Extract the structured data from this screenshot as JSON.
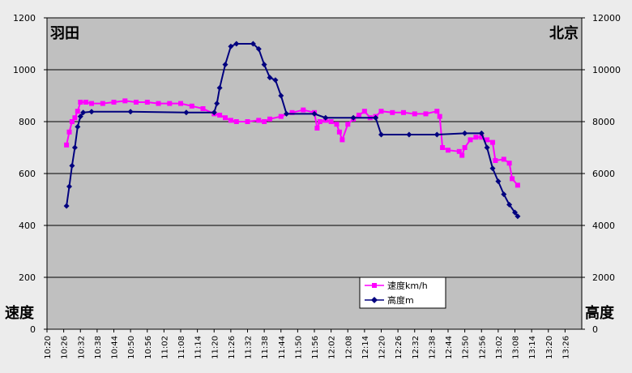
{
  "chart_data": {
    "type": "line",
    "corner_labels": {
      "top_left": "羽田",
      "top_right": "北京",
      "bottom_left": "速度",
      "bottom_right": "高度"
    },
    "left_axis": {
      "ylim": [
        0,
        1200
      ],
      "ticks": [
        "0",
        "200",
        "400",
        "600",
        "800",
        "1000",
        "1200"
      ]
    },
    "right_axis": {
      "ylim": [
        0,
        12000
      ],
      "ticks": [
        "0",
        "2000",
        "4000",
        "6000",
        "8000",
        "10000",
        "12000"
      ]
    },
    "x_ticks": [
      "10:20",
      "10:26",
      "10:32",
      "10:38",
      "10:44",
      "10:50",
      "10:56",
      "11:02",
      "11:08",
      "11:14",
      "11:20",
      "11:26",
      "11:32",
      "11:38",
      "11:44",
      "11:50",
      "11:56",
      "12:02",
      "12:08",
      "12:14",
      "12:20",
      "12:26",
      "12:32",
      "12:38",
      "12:44",
      "12:50",
      "12:56",
      "13:02",
      "13:08",
      "13:14",
      "13:20",
      "13:26"
    ],
    "grid": "horizontal major gridlines",
    "legend": {
      "position": "bottom-center",
      "entries": [
        "速度km/h",
        "高度m"
      ]
    },
    "series": [
      {
        "name": "速度km/h",
        "axis": "left",
        "color": "#ff00ff",
        "marker": "square",
        "points": [
          [
            "10:27",
            710
          ],
          [
            "10:28",
            760
          ],
          [
            "10:29",
            800
          ],
          [
            "10:30",
            815
          ],
          [
            "10:31",
            840
          ],
          [
            "10:32",
            875
          ],
          [
            "10:34",
            875
          ],
          [
            "10:36",
            870
          ],
          [
            "10:40",
            870
          ],
          [
            "10:44",
            875
          ],
          [
            "10:48",
            880
          ],
          [
            "10:52",
            875
          ],
          [
            "10:56",
            875
          ],
          [
            "11:00",
            870
          ],
          [
            "11:04",
            870
          ],
          [
            "11:08",
            870
          ],
          [
            "11:12",
            860
          ],
          [
            "11:16",
            850
          ],
          [
            "11:20",
            830
          ],
          [
            "11:22",
            825
          ],
          [
            "11:24",
            815
          ],
          [
            "11:26",
            805
          ],
          [
            "11:28",
            800
          ],
          [
            "11:32",
            800
          ],
          [
            "11:36",
            805
          ],
          [
            "11:38",
            800
          ],
          [
            "11:40",
            810
          ],
          [
            "11:44",
            820
          ],
          [
            "11:48",
            835
          ],
          [
            "11:52",
            845
          ],
          [
            "11:56",
            835
          ],
          [
            "11:57",
            775
          ],
          [
            "11:58",
            800
          ],
          [
            "12:00",
            805
          ],
          [
            "12:02",
            800
          ],
          [
            "12:04",
            790
          ],
          [
            "12:05",
            760
          ],
          [
            "12:06",
            730
          ],
          [
            "12:08",
            790
          ],
          [
            "12:10",
            810
          ],
          [
            "12:12",
            825
          ],
          [
            "12:14",
            840
          ],
          [
            "12:16",
            815
          ],
          [
            "12:18",
            820
          ],
          [
            "12:20",
            840
          ],
          [
            "12:24",
            835
          ],
          [
            "12:28",
            835
          ],
          [
            "12:32",
            830
          ],
          [
            "12:36",
            830
          ],
          [
            "12:40",
            840
          ],
          [
            "12:41",
            820
          ],
          [
            "12:42",
            700
          ],
          [
            "12:44",
            690
          ],
          [
            "12:48",
            685
          ],
          [
            "12:49",
            670
          ],
          [
            "12:50",
            700
          ],
          [
            "12:52",
            730
          ],
          [
            "12:54",
            740
          ],
          [
            "12:56",
            740
          ],
          [
            "12:58",
            730
          ],
          [
            "13:00",
            720
          ],
          [
            "13:01",
            650
          ],
          [
            "13:04",
            655
          ],
          [
            "13:06",
            640
          ],
          [
            "13:07",
            580
          ],
          [
            "13:09",
            555
          ]
        ]
      },
      {
        "name": "高度m",
        "axis": "right",
        "color": "#00007f",
        "marker": "diamond",
        "points": [
          [
            "10:27",
            4750
          ],
          [
            "10:28",
            5500
          ],
          [
            "10:29",
            6300
          ],
          [
            "10:30",
            7000
          ],
          [
            "10:31",
            7800
          ],
          [
            "10:32",
            8200
          ],
          [
            "10:33",
            8350
          ],
          [
            "10:36",
            8380
          ],
          [
            "10:50",
            8380
          ],
          [
            "11:10",
            8350
          ],
          [
            "11:20",
            8350
          ],
          [
            "11:21",
            8700
          ],
          [
            "11:22",
            9300
          ],
          [
            "11:24",
            10200
          ],
          [
            "11:26",
            10900
          ],
          [
            "11:28",
            11000
          ],
          [
            "11:34",
            11000
          ],
          [
            "11:36",
            10800
          ],
          [
            "11:38",
            10200
          ],
          [
            "11:40",
            9700
          ],
          [
            "11:42",
            9600
          ],
          [
            "11:44",
            9000
          ],
          [
            "11:46",
            8300
          ],
          [
            "11:56",
            8300
          ],
          [
            "12:00",
            8150
          ],
          [
            "12:10",
            8150
          ],
          [
            "12:18",
            8150
          ],
          [
            "12:20",
            7500
          ],
          [
            "12:30",
            7500
          ],
          [
            "12:40",
            7500
          ],
          [
            "12:50",
            7550
          ],
          [
            "12:56",
            7550
          ],
          [
            "12:58",
            7000
          ],
          [
            "13:00",
            6200
          ],
          [
            "13:02",
            5700
          ],
          [
            "13:04",
            5200
          ],
          [
            "13:06",
            4800
          ],
          [
            "13:08",
            4500
          ],
          [
            "13:09",
            4350
          ]
        ]
      }
    ]
  }
}
